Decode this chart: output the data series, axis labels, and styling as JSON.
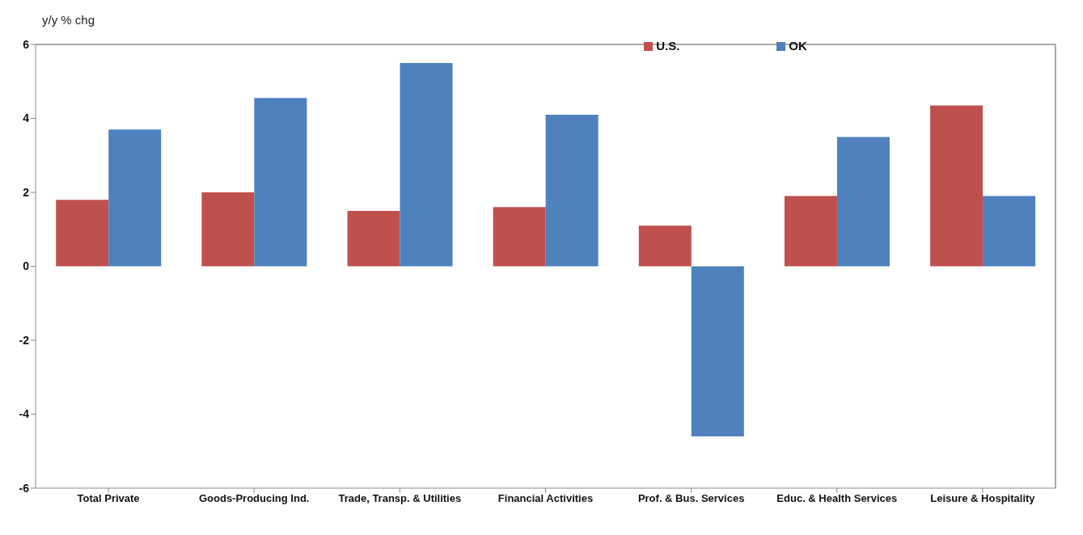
{
  "chart_data": {
    "type": "bar",
    "ylabel": "y/y % chg",
    "categories": [
      "Total Private",
      "Goods-Producing Ind.",
      "Trade, Transp. & Utilities",
      "Financial Activities",
      "Prof. & Bus. Services",
      "Educ. & Health Services",
      "Leisure & Hospitality"
    ],
    "series": [
      {
        "name": "U.S.",
        "color": "#c0504d",
        "values": [
          1.8,
          2.0,
          1.5,
          1.6,
          1.1,
          1.9,
          4.35
        ]
      },
      {
        "name": "OK",
        "color": "#4f81bd",
        "values": [
          3.7,
          4.55,
          5.5,
          4.1,
          -4.6,
          3.5,
          1.9
        ]
      }
    ],
    "ylim": [
      -6,
      6
    ],
    "yticks": [
      -6,
      -4,
      -2,
      0,
      2,
      4,
      6
    ],
    "legend": "top"
  }
}
